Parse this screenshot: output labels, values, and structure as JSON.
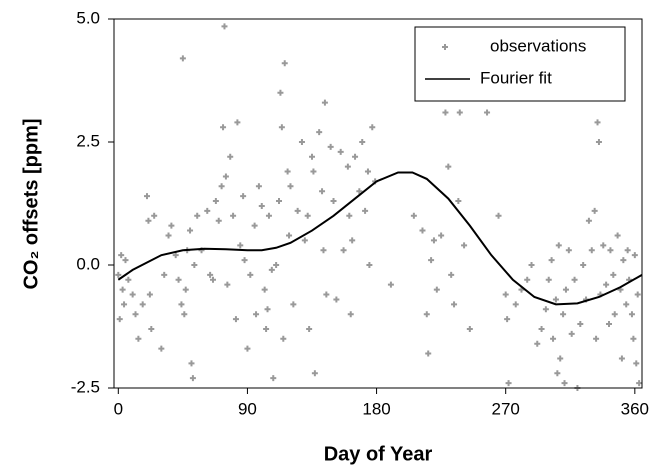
{
  "chart_data": {
    "type": "scatter",
    "xlabel": "Day of Year",
    "ylabel": "CO₂ offsets [ppm]",
    "xlim": [
      -3,
      365
    ],
    "ylim": [
      -2.5,
      5
    ],
    "xticks": [
      0,
      90,
      180,
      270,
      360
    ],
    "yticks": [
      {
        "value": -2.5,
        "label": "-2.5"
      },
      {
        "value": 0,
        "label": "0.0"
      },
      {
        "value": 2.5,
        "label": "2.5"
      },
      {
        "value": 5,
        "label": "5.0"
      }
    ],
    "grid": false,
    "legend": "upper right",
    "series": [
      {
        "name": "observations",
        "mode": "markers",
        "color": "#999999",
        "x": [
          0,
          1,
          2,
          3,
          4,
          5,
          7,
          10,
          12,
          14,
          17,
          20,
          21,
          22,
          23,
          25,
          30,
          32,
          35,
          37,
          40,
          42,
          44,
          45,
          46,
          47,
          48,
          50,
          51,
          52,
          53,
          55,
          58,
          62,
          64,
          66,
          68,
          70,
          72,
          73,
          74,
          75,
          76,
          78,
          80,
          82,
          83,
          85,
          87,
          88,
          90,
          92,
          95,
          96,
          98,
          100,
          102,
          103,
          104,
          105,
          107,
          108,
          110,
          112,
          113,
          114,
          115,
          116,
          118,
          119,
          120,
          122,
          125,
          128,
          130,
          132,
          133,
          135,
          136,
          137,
          140,
          142,
          143,
          144,
          145,
          148,
          150,
          152,
          155,
          157,
          160,
          161,
          162,
          163,
          165,
          168,
          170,
          172,
          174,
          175,
          177,
          179,
          190,
          206,
          212,
          215,
          216,
          218,
          220,
          222,
          225,
          228,
          230,
          232,
          234,
          237,
          238,
          241,
          245,
          257,
          265,
          270,
          271,
          272,
          277,
          281,
          285,
          288,
          292,
          295,
          298,
          300,
          302,
          303,
          305,
          306,
          307,
          308,
          310,
          311,
          312,
          314,
          316,
          318,
          320,
          322,
          324,
          326,
          328,
          330,
          332,
          333,
          334,
          335,
          336,
          338,
          340,
          342,
          343,
          345,
          346,
          348,
          350,
          351,
          352,
          354,
          355,
          356,
          358,
          359,
          360,
          361,
          362,
          363
        ],
        "values": [
          -0.2,
          -1.1,
          0.2,
          -0.5,
          -0.8,
          0.1,
          -0.3,
          -0.6,
          -1.0,
          -1.5,
          -0.8,
          1.4,
          0.9,
          -0.6,
          -1.3,
          1.0,
          -1.7,
          -0.2,
          0.6,
          0.8,
          0.2,
          -0.3,
          -0.8,
          4.2,
          -1.0,
          -0.5,
          0.3,
          0.7,
          -2.0,
          -2.3,
          0.0,
          1.0,
          0.3,
          1.1,
          -0.2,
          -0.3,
          1.3,
          0.9,
          1.6,
          2.8,
          4.85,
          1.8,
          -0.4,
          2.2,
          1.0,
          -1.1,
          2.9,
          0.4,
          1.4,
          0.1,
          -1.7,
          -0.2,
          0.8,
          -1.0,
          1.6,
          1.2,
          -0.5,
          -1.3,
          -0.9,
          1.0,
          -0.1,
          -2.3,
          0.0,
          1.3,
          3.5,
          2.8,
          -1.5,
          4.1,
          1.9,
          0.6,
          1.6,
          -0.8,
          1.1,
          2.5,
          0.5,
          1.0,
          -1.3,
          2.2,
          1.9,
          -2.2,
          2.7,
          1.5,
          0.3,
          3.3,
          -0.6,
          2.4,
          1.3,
          -0.7,
          2.3,
          0.3,
          2.0,
          1.0,
          -1.0,
          0.5,
          2.2,
          1.5,
          2.5,
          1.1,
          1.9,
          0.0,
          2.8,
          1.7,
          -0.4,
          1.0,
          0.7,
          -1.0,
          -1.8,
          0.1,
          0.5,
          -0.5,
          0.6,
          3.1,
          2.0,
          -0.2,
          -0.8,
          1.3,
          3.1,
          0.4,
          -1.3,
          3.1,
          1.0,
          -0.6,
          -1.1,
          -2.4,
          -0.8,
          -0.5,
          -0.3,
          0.0,
          -1.6,
          -1.3,
          -0.9,
          -0.3,
          0.1,
          -1.5,
          -0.7,
          -2.2,
          0.4,
          -1.9,
          -1.0,
          -2.4,
          -0.5,
          0.3,
          -1.4,
          -0.3,
          -2.5,
          -1.2,
          0.0,
          -0.7,
          0.9,
          0.3,
          1.1,
          -1.5,
          2.9,
          2.5,
          -0.6,
          0.4,
          -0.4,
          -1.2,
          0.3,
          -0.2,
          -1.0,
          0.6,
          -0.5,
          -1.9,
          0.1,
          -0.8,
          0.3,
          -0.3,
          -1.0,
          -1.5,
          0.2,
          -2.0,
          -0.6,
          -2.4
        ]
      },
      {
        "name": "Fourier fit",
        "mode": "line",
        "color": "#000000",
        "x": [
          0,
          10,
          20,
          30,
          45,
          60,
          75,
          90,
          100,
          110,
          120,
          135,
          150,
          165,
          180,
          195,
          205,
          215,
          230,
          245,
          260,
          275,
          290,
          305,
          320,
          335,
          350,
          365
        ],
        "values": [
          -0.3,
          -0.1,
          0.05,
          0.2,
          0.3,
          0.33,
          0.32,
          0.3,
          0.3,
          0.35,
          0.45,
          0.7,
          1.0,
          1.35,
          1.7,
          1.88,
          1.88,
          1.75,
          1.35,
          0.8,
          0.2,
          -0.3,
          -0.65,
          -0.8,
          -0.78,
          -0.65,
          -0.45,
          -0.2
        ]
      }
    ]
  }
}
